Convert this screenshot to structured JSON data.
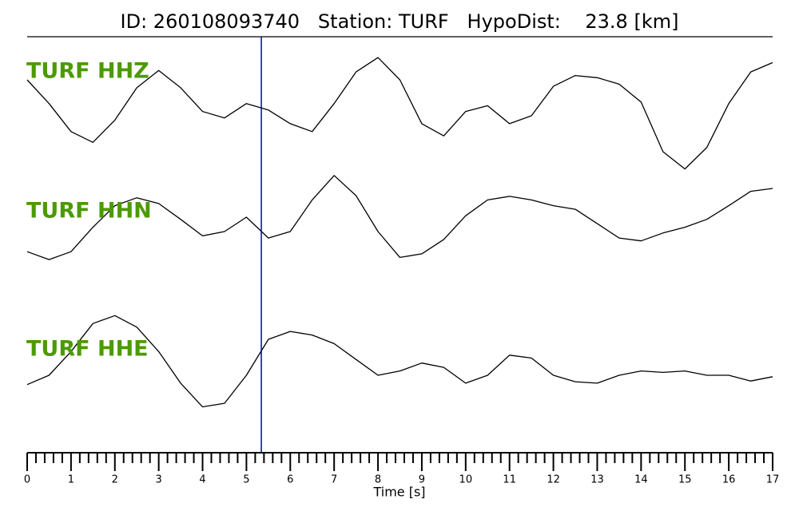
{
  "chart_data": {
    "type": "line",
    "title": "ID: 260108093740   Station: TURF   HypoDist:    23.8 [km]",
    "x_label": "Time [s]",
    "x": [
      0,
      0.5,
      1,
      1.5,
      2,
      2.5,
      3,
      3.5,
      4,
      4.5,
      5,
      5.5,
      6,
      6.5,
      7,
      7.5,
      8,
      8.5,
      9,
      9.5,
      10,
      10.5,
      11,
      11.5,
      12,
      12.5,
      13,
      13.5,
      14,
      14.5,
      15,
      15.5,
      16,
      16.5,
      17
    ],
    "xlim": [
      0,
      17
    ],
    "xticks": [
      0,
      1,
      2,
      3,
      4,
      5,
      6,
      7,
      8,
      9,
      10,
      11,
      12,
      13,
      14,
      15,
      16,
      17
    ],
    "xminorticks": [
      0.2,
      0.4,
      0.6,
      0.8,
      1.2,
      1.4,
      1.6,
      1.8,
      2.2,
      2.4,
      2.6,
      2.8,
      3.2,
      3.4,
      3.6,
      3.8,
      4.2,
      4.4,
      4.6,
      4.8,
      5.2,
      5.4,
      5.6,
      5.8,
      6.2,
      6.4,
      6.6,
      6.8,
      7.2,
      7.4,
      7.6,
      7.8,
      8.2,
      8.4,
      8.6,
      8.8,
      9.2,
      9.4,
      9.6,
      9.8,
      10.2,
      10.4,
      10.6,
      10.8,
      11.2,
      11.4,
      11.6,
      11.8,
      12.2,
      12.4,
      12.6,
      12.8,
      13.2,
      13.4,
      13.6,
      13.8,
      14.2,
      14.4,
      14.6,
      14.8,
      15.2,
      15.4,
      15.6,
      15.8,
      16.2,
      16.4,
      16.6,
      16.8
    ],
    "ylim": [
      -1,
      1
    ],
    "label_color": "#4b9a00",
    "vline": {
      "x": 5.34,
      "color": "#0000cc"
    },
    "series": [
      {
        "name": "TURF HHZ",
        "color": "#000000",
        "values": [
          0.5,
          0.17,
          -0.22,
          -0.37,
          -0.06,
          0.39,
          0.63,
          0.39,
          0.06,
          -0.03,
          0.17,
          0.08,
          -0.11,
          -0.22,
          0.17,
          0.61,
          0.81,
          0.5,
          -0.11,
          -0.28,
          0.06,
          0.14,
          -0.11,
          0,
          0.41,
          0.56,
          0.53,
          0.44,
          0.19,
          -0.5,
          -0.74,
          -0.44,
          0.17,
          0.61,
          0.74
        ]
      },
      {
        "name": "TURF HHN",
        "color": "#000000",
        "values": [
          -0.48,
          -0.59,
          -0.48,
          -0.14,
          0.16,
          0.27,
          0.19,
          -0.03,
          -0.26,
          -0.2,
          0,
          -0.29,
          -0.2,
          0.24,
          0.58,
          0.3,
          -0.2,
          -0.56,
          -0.51,
          -0.31,
          0.02,
          0.24,
          0.29,
          0.24,
          0.16,
          0.11,
          -0.09,
          -0.29,
          -0.33,
          -0.22,
          -0.14,
          -0.03,
          0.16,
          0.36,
          0.4
        ]
      },
      {
        "name": "TURF HHE",
        "color": "#000000",
        "values": [
          -0.33,
          -0.2,
          0.13,
          0.52,
          0.63,
          0.47,
          0.13,
          -0.31,
          -0.64,
          -0.59,
          -0.2,
          0.3,
          0.41,
          0.36,
          0.24,
          0.02,
          -0.2,
          -0.14,
          -0.03,
          -0.09,
          -0.31,
          -0.2,
          0.08,
          0.04,
          -0.2,
          -0.29,
          -0.31,
          -0.2,
          -0.14,
          -0.16,
          -0.14,
          -0.2,
          -0.2,
          -0.28,
          -0.22
        ]
      }
    ]
  }
}
